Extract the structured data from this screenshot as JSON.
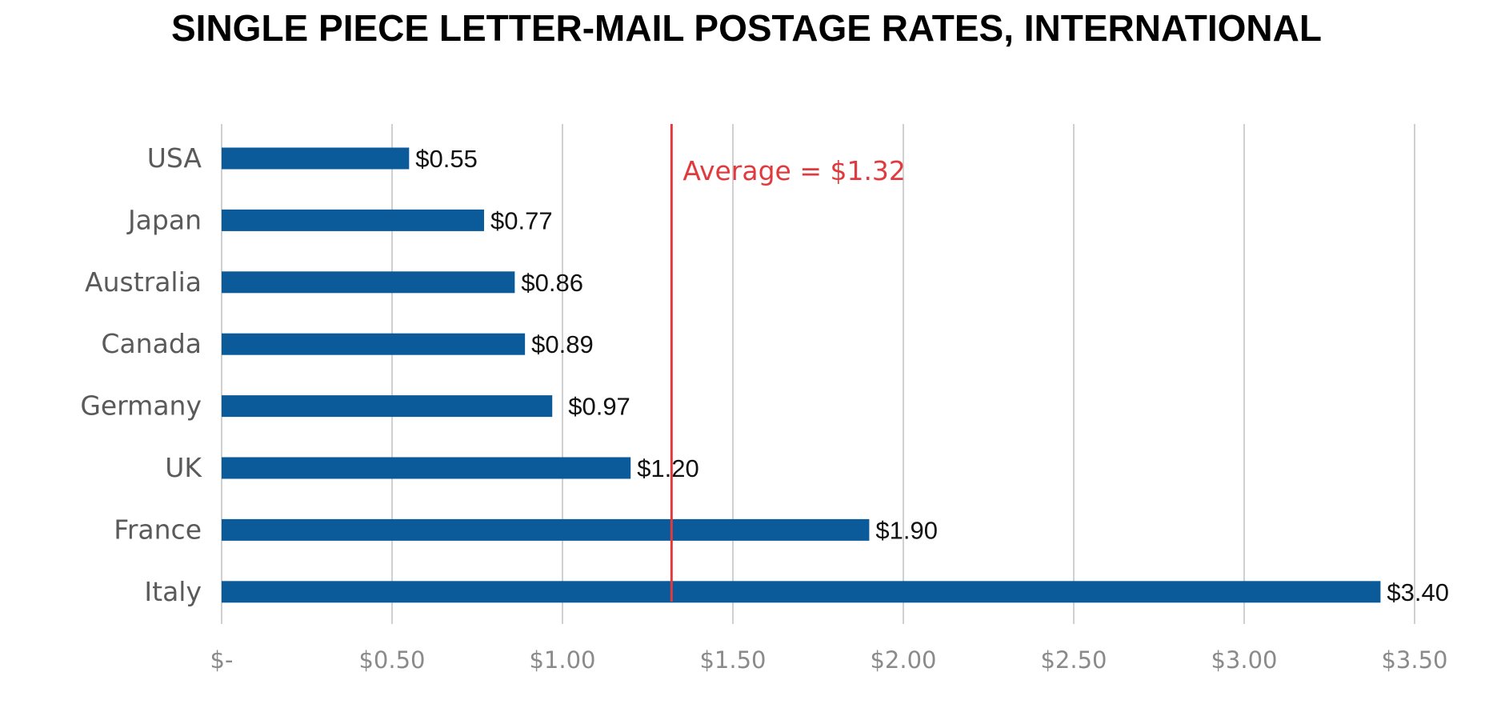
{
  "chart_data": {
    "type": "bar",
    "orientation": "horizontal",
    "title": "SINGLE PIECE LETTER-MAIL POSTAGE RATES, INTERNATIONAL",
    "categories": [
      "USA",
      "Japan",
      "Australia",
      "Canada",
      "Germany",
      "UK",
      "France",
      "Italy"
    ],
    "values": [
      0.55,
      0.77,
      0.86,
      0.89,
      0.97,
      1.2,
      1.9,
      3.4
    ],
    "value_labels": [
      "$0.55",
      "$0.77",
      "$0.86",
      "$0.89",
      "$0.97",
      "$1.20",
      "$1.90",
      "$3.40"
    ],
    "x_ticks": [
      0,
      0.5,
      1.0,
      1.5,
      2.0,
      2.5,
      3.0,
      3.5
    ],
    "x_tick_labels": [
      "$-",
      "$0.50",
      "$1.00",
      "$1.50",
      "$2.00",
      "$2.50",
      "$3.00",
      "$3.50"
    ],
    "xlim": [
      0,
      3.5
    ],
    "grid": "vertical",
    "legend": "none",
    "reference_line": {
      "value": 1.32,
      "label": "Average = $1.32",
      "color": "#e03a3e"
    },
    "colors": {
      "bar": "#0b5a99",
      "grid": "#d0d0d0"
    }
  }
}
